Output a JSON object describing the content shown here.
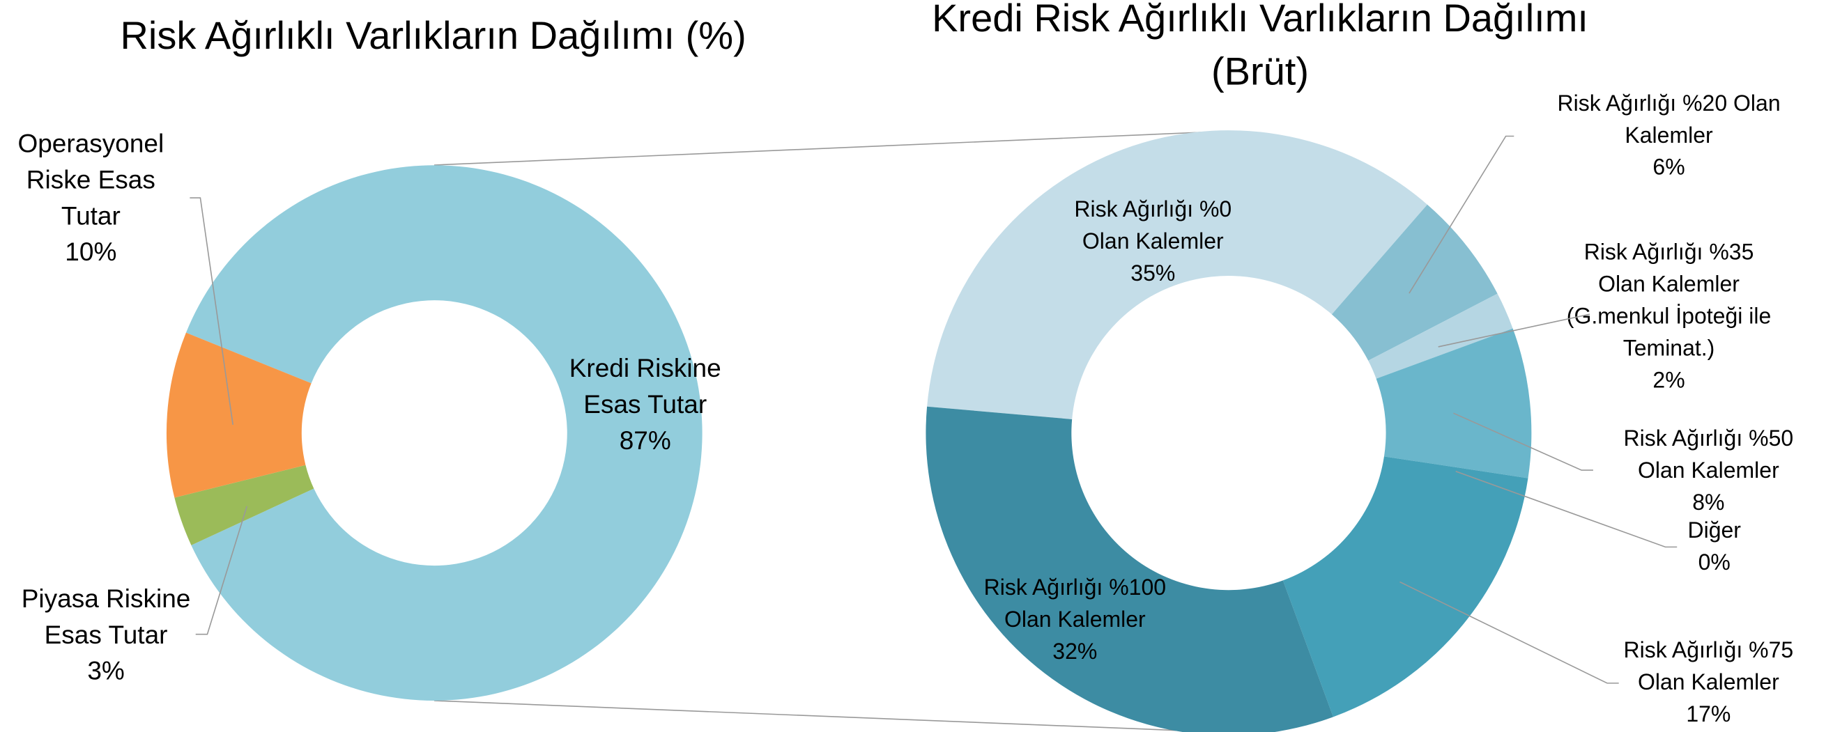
{
  "chart_data": [
    {
      "type": "donut",
      "title": [
        "Risk Ağırlıklı Varlıkların Dağılımı (%)"
      ],
      "categories": [
        [
          "Kredi Riskine",
          "Esas Tutar"
        ],
        [
          "Piyasa Riskine",
          "Esas Tutar"
        ],
        [
          "Operasyonel",
          "Riske Esas",
          "Tutar"
        ]
      ],
      "values": [
        87,
        3,
        10
      ],
      "value_labels": [
        "87%",
        "3%",
        "10%"
      ],
      "colors": [
        "#92CDDC",
        "#9BBB59",
        "#F79646"
      ]
    },
    {
      "type": "donut",
      "title": [
        "Kredi Risk Ağırlıklı Varlıkların Dağılımı",
        "(Brüt)"
      ],
      "categories": [
        [
          "Risk Ağırlığı %0",
          "Olan Kalemler"
        ],
        [
          "Risk Ağırlığı %20 Olan",
          "Kalemler"
        ],
        [
          "Risk Ağırlığı %35",
          "Olan Kalemler",
          "(G.menkul İpoteği ile",
          "Teminat.)"
        ],
        [
          "Risk Ağırlığı %50",
          "Olan Kalemler"
        ],
        [
          "Diğer"
        ],
        [
          "Risk Ağırlığı %75",
          "Olan Kalemler"
        ],
        [
          "Risk Ağırlığı %100",
          "Olan Kalemler"
        ]
      ],
      "values": [
        35,
        6,
        2,
        8,
        0,
        17,
        32
      ],
      "value_labels": [
        "35%",
        "6%",
        "2%",
        "8%",
        "0%",
        "17%",
        "32%"
      ],
      "colors": [
        "#C4DDE8",
        "#87BFD1",
        "#B5D6E3",
        "#6AB6CB",
        "#4BACC6",
        "#44A0B8",
        "#3D8CA3"
      ]
    }
  ]
}
